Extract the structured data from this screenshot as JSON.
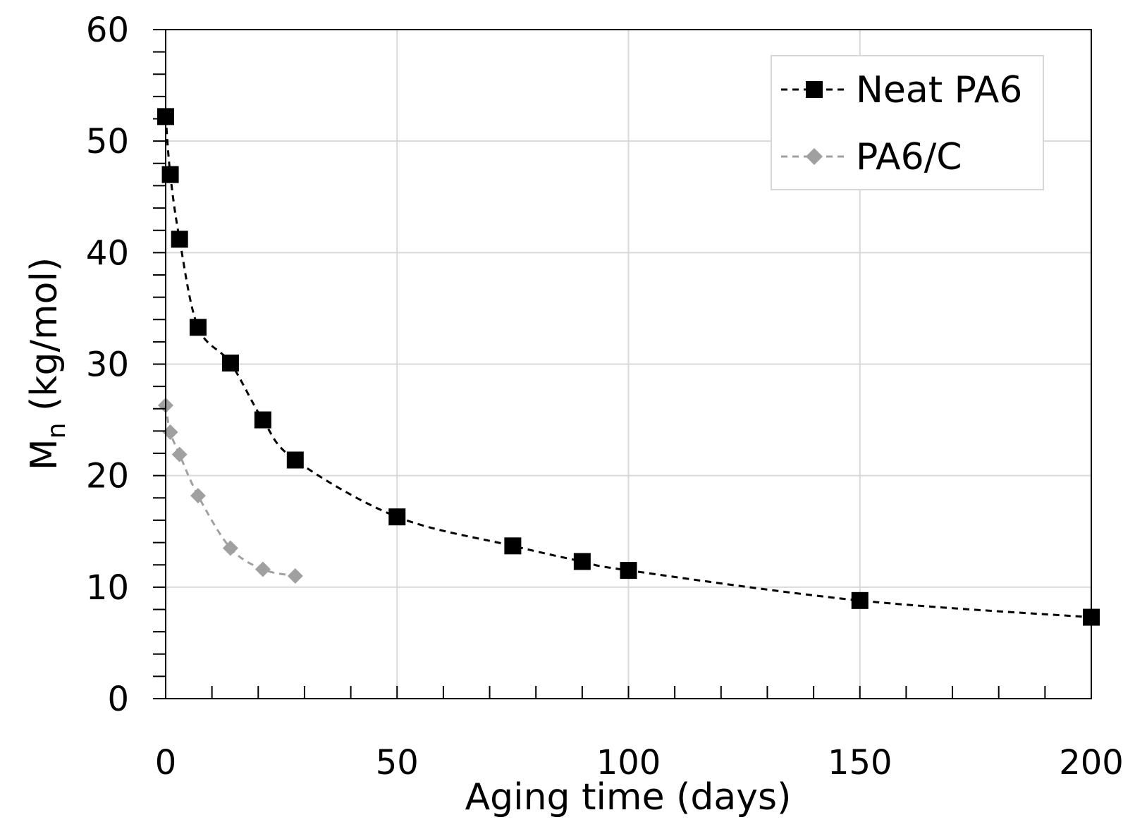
{
  "chart_data": {
    "type": "scatter",
    "title": "",
    "xlabel": "Aging time (days)",
    "ylabel_main": "M",
    "ylabel_sub": "n",
    "ylabel_units": " (kg/mol)",
    "xlim": [
      0,
      200
    ],
    "ylim": [
      0,
      60
    ],
    "x_ticks": [
      0,
      50,
      100,
      150,
      200
    ],
    "y_ticks": [
      0,
      10,
      20,
      30,
      40,
      50,
      60
    ],
    "x_minor_step": 10,
    "y_minor_step": 2,
    "grid": true,
    "legend_position": "top-right",
    "series": [
      {
        "name": "Neat PA6",
        "color": "#000000",
        "marker": "square",
        "line_style": "dashed",
        "x": [
          0,
          1,
          3,
          7,
          14,
          21,
          28,
          50,
          75,
          90,
          100,
          150,
          200
        ],
        "y": [
          52.2,
          47.0,
          41.2,
          33.3,
          30.1,
          25.0,
          21.4,
          16.3,
          13.7,
          12.3,
          11.5,
          8.8,
          7.3
        ]
      },
      {
        "name": "PA6/C",
        "color": "#a0a0a0",
        "marker": "diamond",
        "line_style": "dashed",
        "x": [
          0,
          1,
          3,
          7,
          14,
          21,
          28
        ],
        "y": [
          26.3,
          23.9,
          21.9,
          18.2,
          13.5,
          11.6,
          11.0
        ]
      }
    ]
  }
}
